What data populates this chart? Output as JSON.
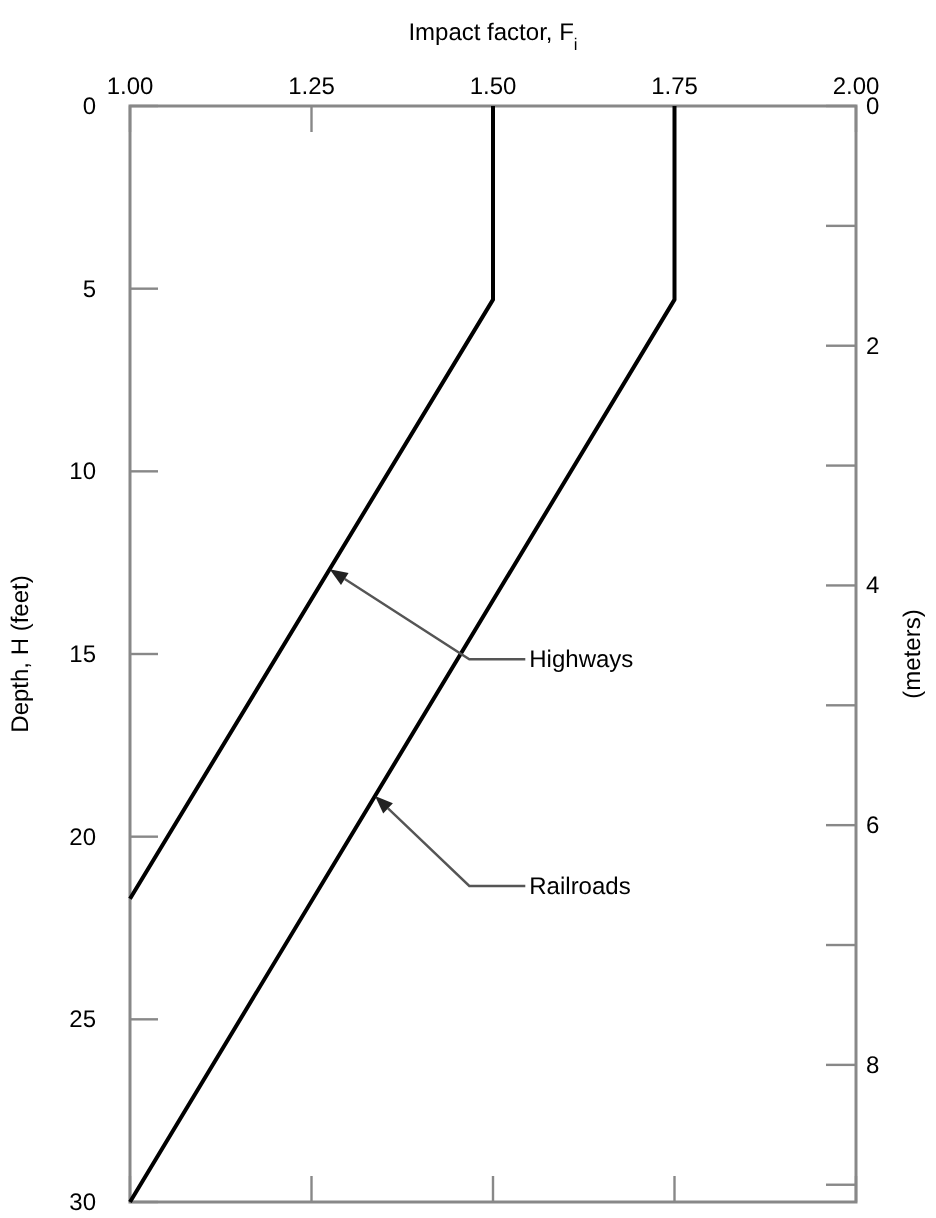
{
  "chart_data": {
    "type": "line",
    "xlabel": "Impact factor, F$_{i}$",
    "ylabel": "Depth, H (feet)",
    "y2label": "(meters)",
    "xlim": [
      1,
      2
    ],
    "xticks": [
      {
        "value": 1,
        "label": "1.00"
      },
      {
        "value": 1.25,
        "label": "1.25"
      },
      {
        "value": 1.5,
        "label": "1.50"
      },
      {
        "value": 1.75,
        "label": "1.75"
      },
      {
        "value": 2,
        "label": "2.00"
      }
    ],
    "ylim": [
      30,
      0
    ],
    "yticks": [
      0,
      5,
      10,
      15,
      20,
      25,
      30
    ],
    "y2lim": [
      9.144,
      0
    ],
    "y2ticks": [
      0,
      {
        "value": 1,
        "label": null
      },
      2,
      {
        "value": 3,
        "label": null
      },
      4,
      {
        "value": 5,
        "label": null
      },
      6,
      {
        "value": 7,
        "label": null
      },
      8,
      {
        "value": 9,
        "label": null
      }
    ],
    "grid": false,
    "marker": "none",
    "line_style": "solid",
    "series": [
      {
        "color": "#000000",
        "x": [
          1.5,
          1.5,
          1.0
        ],
        "values": [
          0,
          5.3,
          21.7
        ]
      },
      {
        "color": "#000000",
        "x": [
          1.75,
          1.75,
          1.0
        ],
        "values": [
          0,
          5.3,
          30
        ]
      }
    ],
    "annotations": [
      "Highways",
      "Railroads"
    ]
  }
}
